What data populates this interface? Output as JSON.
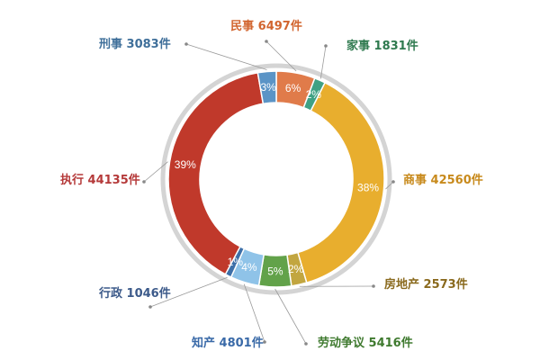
{
  "chart_data": {
    "type": "pie",
    "categories": [
      "民事",
      "家事",
      "商事",
      "房地产",
      "劳动争议",
      "知产",
      "行政",
      "执行",
      "刑事"
    ],
    "series": [
      {
        "values": [
          6497,
          1831,
          42560,
          2573,
          5416,
          4801,
          1046,
          44135,
          3083
        ],
        "percent_labels": [
          "6%",
          "2%",
          "38%",
          "2%",
          "5%",
          "4%",
          "1%",
          "39%",
          "3%"
        ]
      }
    ],
    "labels": [
      "民事 6497件",
      "家事 1831件",
      "商事 42560件",
      "房地产 2573件",
      "劳动争议 5416件",
      "知产 4801件",
      "行政 1046件",
      "执行 44135件",
      "刑事 3083件"
    ],
    "colors": [
      "#e07b4a",
      "#3fa184",
      "#e8ae2e",
      "#c2a640",
      "#62a24a",
      "#8fc3e8",
      "#3d6fa8",
      "#c0392b",
      "#5b94c6"
    ],
    "label_colors": [
      "#d2652f",
      "#2f7a4f",
      "#c88a1c",
      "#8a6a1e",
      "#3f7a2f",
      "#3a6aa8",
      "#3c5a8a",
      "#b53a3a",
      "#3f6f9a"
    ],
    "ring_color": "#d4d4d4",
    "title": "",
    "legend": "none"
  }
}
